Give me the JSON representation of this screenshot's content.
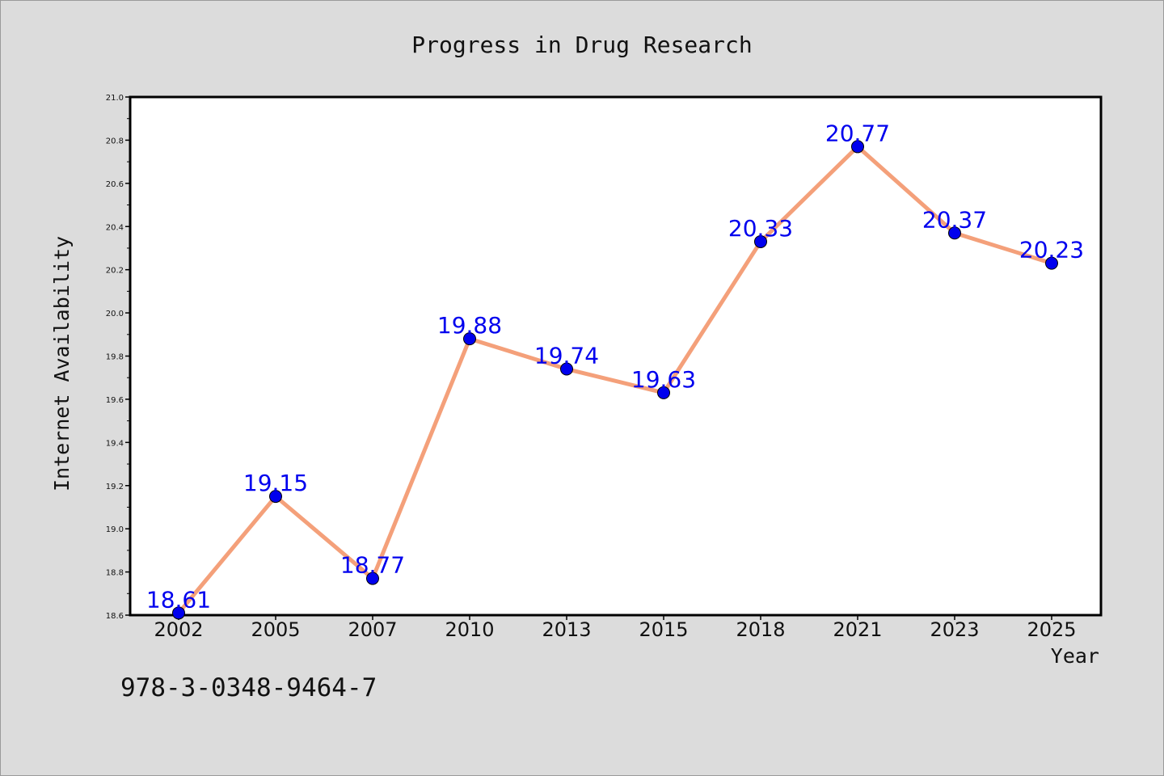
{
  "chart_data": {
    "type": "line",
    "title": "Progress in Drug Research",
    "xlabel": "Year",
    "ylabel": "Internet Availability",
    "categories": [
      "2002",
      "2005",
      "2007",
      "2010",
      "2013",
      "2015",
      "2018",
      "2021",
      "2023",
      "2025"
    ],
    "series": [
      {
        "values": [
          18.61,
          19.15,
          18.77,
          19.88,
          19.74,
          19.63,
          20.33,
          20.77,
          20.37,
          20.23
        ],
        "data_labels": [
          "18.61",
          "19.15",
          "18.77",
          "19.88",
          "19.74",
          "19.63",
          "20.33",
          "20.77",
          "20.37",
          "20.23"
        ],
        "line_color": "#f4a07a",
        "marker_color": "#0000ee",
        "label_color": "#0000ee"
      }
    ],
    "yticks": [
      "18.6",
      "18.8",
      "19.0",
      "19.2",
      "19.4",
      "19.6",
      "19.8",
      "20.0",
      "20.2",
      "20.4",
      "20.6",
      "20.8",
      "21.0"
    ],
    "ylim": [
      18.6,
      21.0
    ],
    "grid": false,
    "legend": "none"
  },
  "footer": {
    "isbn": "978-3-0348-9464-7"
  },
  "colors": {
    "background": "#dcdcdc",
    "plot_area": "#ffffff"
  }
}
